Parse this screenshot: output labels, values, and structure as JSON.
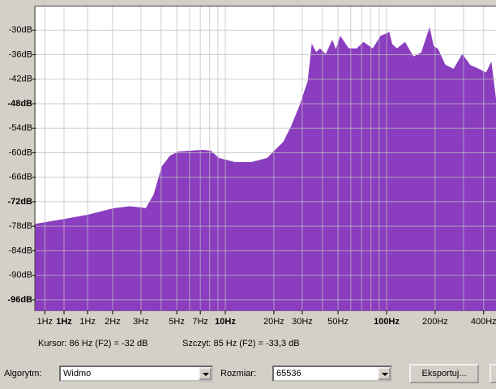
{
  "chart_data": {
    "type": "area",
    "color": "#8b3dbf",
    "log_x": true,
    "grid": true,
    "x": [
      0.667,
      1.01,
      1.43,
      2.02,
      2.55,
      3.03,
      3.22,
      3.61,
      4.06,
      4.55,
      5.11,
      7.23,
      8.12,
      9.12,
      11.5,
      14.5,
      18.2,
      20.4,
      23.0,
      25.8,
      29.0,
      32.6,
      34.5,
      36.5,
      38.7,
      42.0,
      46.1,
      48.5,
      51.7,
      58.0,
      65.2,
      72.0,
      82.2,
      92.0,
      103.5,
      108.0,
      116.0,
      130.0,
      146.5,
      165.0,
      184.6,
      195.0,
      207.5,
      230.0,
      261.0,
      295.0,
      329.0,
      370.0,
      415.0,
      445.0,
      477.0
    ],
    "values": [
      -77.5,
      -76.3,
      -75.2,
      -73.7,
      -73.2,
      -73.5,
      -73.7,
      -70.3,
      -63.4,
      -60.8,
      -59.8,
      -59.4,
      -59.6,
      -61.4,
      -62.4,
      -62.4,
      -61.4,
      -59.4,
      -57.4,
      -53.4,
      -48.5,
      -42.5,
      -33.6,
      -35.5,
      -34.6,
      -36.0,
      -32.6,
      -35.0,
      -31.6,
      -34.5,
      -34.6,
      -33.0,
      -34.6,
      -31.5,
      -30.6,
      -33.5,
      -34.6,
      -33.0,
      -36.6,
      -35.5,
      -29.6,
      -34.0,
      -34.6,
      -38.5,
      -39.6,
      -36.0,
      -38.6,
      -39.5,
      -40.5,
      -38.0,
      -47.5
    ],
    "xlim": [
      0.667,
      477
    ],
    "ylim": [
      -98.6,
      -24.2
    ],
    "xticks": [
      {
        "value": 0.76,
        "label": "1Hz"
      },
      {
        "value": 1,
        "label": "1Hz",
        "bold": true
      },
      {
        "value": 1.4,
        "label": "1Hz"
      },
      {
        "value": 2,
        "label": "2Hz"
      },
      {
        "value": 3,
        "label": "3Hz"
      },
      {
        "value": 5,
        "label": "5Hz"
      },
      {
        "value": 7,
        "label": "7Hz"
      },
      {
        "value": 10,
        "label": "10Hz",
        "bold": true
      },
      {
        "value": 20,
        "label": "20Hz"
      },
      {
        "value": 30,
        "label": "30Hz"
      },
      {
        "value": 50,
        "label": "50Hz"
      },
      {
        "value": 100,
        "label": "100Hz",
        "bold": true
      },
      {
        "value": 200,
        "label": "200Hz"
      },
      {
        "value": 400,
        "label": "400Hz"
      }
    ],
    "minor_xticks": [
      4,
      6,
      8,
      9,
      40,
      60,
      70,
      80,
      90,
      300
    ],
    "yticks": [
      {
        "value": -30,
        "label": "-30dB"
      },
      {
        "value": -36,
        "label": "-36dB"
      },
      {
        "value": -42,
        "label": "-42dB"
      },
      {
        "value": -48,
        "label": "-48dB",
        "bold": true
      },
      {
        "value": -54,
        "label": "-54dB"
      },
      {
        "value": -60,
        "label": "-60dB"
      },
      {
        "value": -66,
        "label": "-66dB"
      },
      {
        "value": -72,
        "label": "-72dB",
        "bold": true
      },
      {
        "value": -78,
        "label": "-78dB"
      },
      {
        "value": -84,
        "label": "-84dB"
      },
      {
        "value": -90,
        "label": "-90dB"
      },
      {
        "value": -96,
        "label": "-96dB",
        "bold": true
      }
    ]
  },
  "status": {
    "cursor": "Kursor: 86 Hz (F2) = -32 dB",
    "peak": "Szczyt: 85 Hz (F2) = -33,3 dB"
  },
  "controls": {
    "algorithm_label": "Algorytm:",
    "algorithm_value": "Widmo",
    "size_label": "Rozmiar:",
    "size_value": "65536",
    "export_button": "Eksportuj..."
  }
}
